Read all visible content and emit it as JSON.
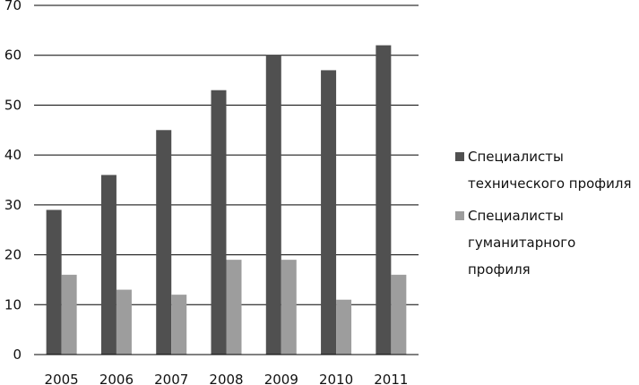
{
  "chart_data": {
    "type": "bar",
    "categories": [
      "2005",
      "2006",
      "2007",
      "2008",
      "2009",
      "2010",
      "2011"
    ],
    "series": [
      {
        "name": "Специалисты технического профиля",
        "values": [
          29,
          36,
          45,
          53,
          60,
          57,
          62
        ],
        "color": "#505050"
      },
      {
        "name": "Специалисты гуманитарного профиля",
        "values": [
          16,
          13,
          12,
          19,
          19,
          11,
          16
        ],
        "color": "#9d9d9d"
      }
    ],
    "yticks": [
      "0",
      "10",
      "20",
      "30",
      "40",
      "50",
      "60",
      "70"
    ],
    "ylim": [
      0,
      70
    ],
    "grid": true,
    "legend_position": "right"
  }
}
